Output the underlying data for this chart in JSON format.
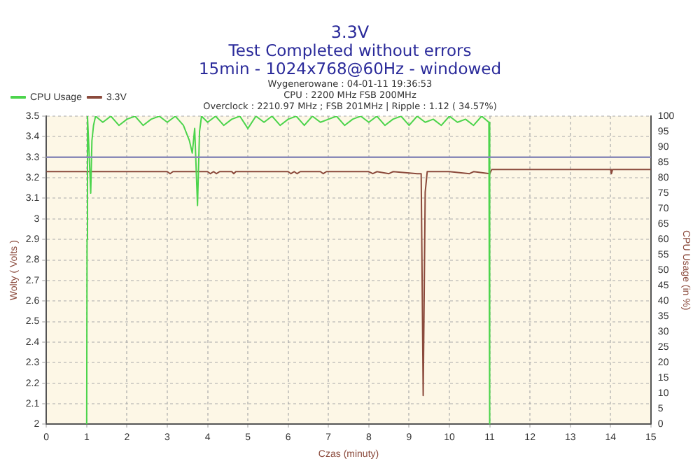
{
  "chart_data": {
    "type": "line",
    "title": "3.3V",
    "subtitle": "Test Completed without errors\n15min - 1024x768@60Hz - windowed",
    "annotations": [
      "Wygenerowane : 04-01-11 19:36:53",
      "CPU : 2200 MHz FSB 200MHz",
      "Overclock : 2210.97 MHz ; FSB 201MHz | Ripple : 1.12 ( 34.57%)"
    ],
    "xlabel": "Czas (minuty)",
    "ylabel": "Wolty ( Volts )",
    "y2label": "CPU Usage (in %)",
    "xlim": [
      0,
      15
    ],
    "xticks": [
      0,
      1,
      2,
      3,
      4,
      5,
      6,
      7,
      8,
      9,
      10,
      11,
      12,
      13,
      14,
      15
    ],
    "ylim": [
      2,
      3.5
    ],
    "yticks": [
      2,
      2.1,
      2.2,
      2.3,
      2.4,
      2.5,
      2.6,
      2.7,
      2.8,
      2.9,
      3,
      3.1,
      3.2,
      3.3,
      3.4,
      3.5
    ],
    "y2lim": [
      0,
      100
    ],
    "y2ticks": [
      0,
      5,
      10,
      15,
      20,
      25,
      30,
      35,
      40,
      45,
      50,
      55,
      60,
      65,
      70,
      75,
      80,
      85,
      90,
      95,
      100
    ],
    "grid": true,
    "legend": "top left",
    "marker": "none",
    "ref_lines": [
      {
        "axis": "y",
        "value": 3.3,
        "color": "#8a8ab8"
      }
    ],
    "series": [
      {
        "name": "CPU Usage",
        "color": "#4cd44c",
        "axis": "y2",
        "x": [
          1.0,
          1.01,
          1.02,
          1.06,
          1.1,
          1.13,
          1.17,
          1.22,
          1.4,
          1.6,
          1.8,
          2.0,
          2.2,
          2.4,
          2.6,
          2.8,
          3.0,
          3.2,
          3.4,
          3.55,
          3.62,
          3.68,
          3.75,
          3.8,
          3.85,
          4.0,
          4.2,
          4.4,
          4.6,
          4.8,
          5.0,
          5.2,
          5.4,
          5.6,
          5.8,
          6.0,
          6.2,
          6.4,
          6.6,
          6.8,
          7.0,
          7.2,
          7.4,
          7.6,
          7.8,
          8.0,
          8.2,
          8.4,
          8.6,
          8.8,
          9.0,
          9.2,
          9.4,
          9.6,
          9.8,
          10.0,
          10.2,
          10.4,
          10.6,
          10.8,
          10.98,
          11.0
        ],
        "values": [
          0,
          60,
          100,
          88,
          75,
          92,
          97,
          100,
          98,
          100,
          97,
          99,
          100,
          97,
          99,
          100,
          98,
          100,
          97,
          92,
          88,
          96,
          71,
          95,
          100,
          98,
          100,
          97,
          99,
          100,
          96,
          100,
          98,
          100,
          97,
          99,
          100,
          97,
          100,
          98,
          99,
          100,
          97,
          99,
          100,
          98,
          100,
          97,
          99,
          100,
          97,
          100,
          98,
          99,
          97,
          100,
          98,
          99,
          97,
          100,
          98,
          0
        ]
      },
      {
        "name": "3.3V",
        "color": "#8b4a3c",
        "axis": "y",
        "x": [
          0,
          3.0,
          3.07,
          3.14,
          4.0,
          4.07,
          4.15,
          4.22,
          4.3,
          4.6,
          4.65,
          4.7,
          6.0,
          6.07,
          6.15,
          6.22,
          6.3,
          6.8,
          6.87,
          6.95,
          8.0,
          8.1,
          8.2,
          8.5,
          8.6,
          9.2,
          9.3,
          9.35,
          9.4,
          9.45,
          10.0,
          10.5,
          10.6,
          11.0,
          11.05,
          14.0,
          14.02,
          14.05,
          15
        ],
        "values": [
          3.23,
          3.23,
          3.22,
          3.23,
          3.23,
          3.22,
          3.23,
          3.22,
          3.23,
          3.23,
          3.22,
          3.23,
          3.23,
          3.22,
          3.23,
          3.22,
          3.23,
          3.23,
          3.22,
          3.23,
          3.23,
          3.22,
          3.23,
          3.22,
          3.23,
          3.22,
          3.22,
          2.14,
          3.13,
          3.23,
          3.23,
          3.22,
          3.23,
          3.22,
          3.24,
          3.24,
          3.22,
          3.24,
          3.24
        ]
      }
    ]
  }
}
